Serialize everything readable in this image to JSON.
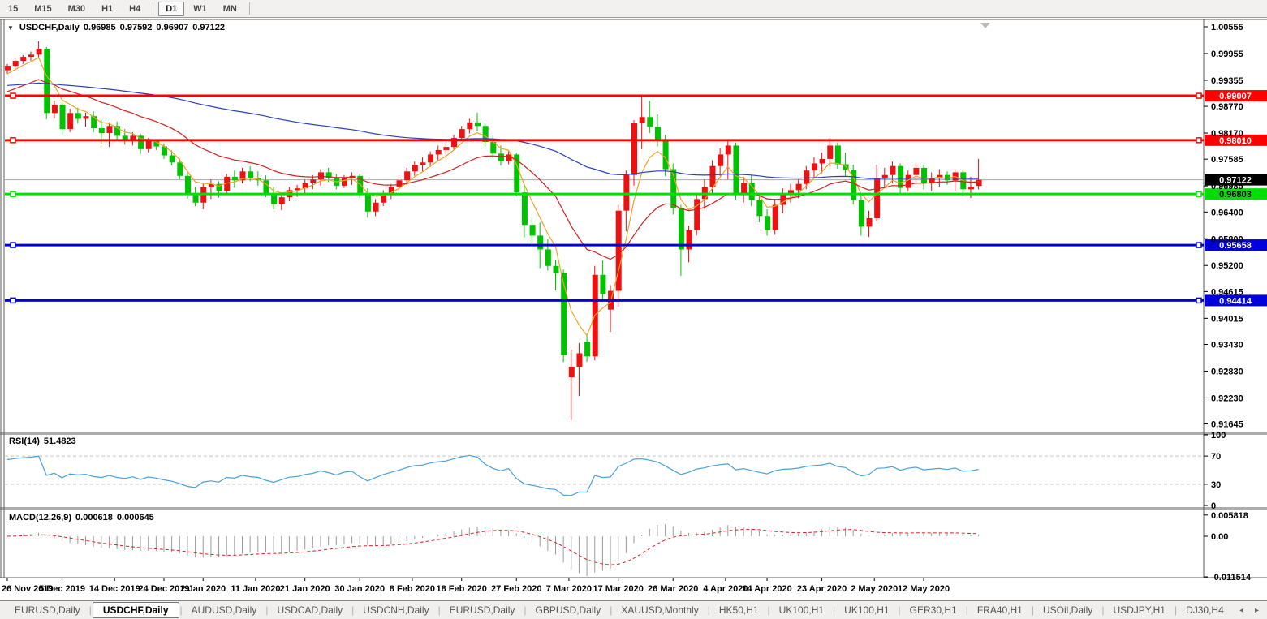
{
  "toolbar": {
    "buttons": [
      "15",
      "M15",
      "M30",
      "H1",
      "H4",
      "D1",
      "W1",
      "MN"
    ],
    "active": "D1",
    "separators_after": [
      4,
      7
    ]
  },
  "chart": {
    "title": {
      "symbol_period": "USDCHF,Daily",
      "open": "0.96985",
      "high": "0.97592",
      "low": "0.96907",
      "close": "0.97122"
    },
    "icons": {
      "symbol_dropdown": "▼",
      "shift_marker": "▾"
    },
    "colors": {
      "bull": "#ED1111",
      "bear": "#00C300",
      "ma_fast": "#EFA227",
      "ma_mid": "#D02020",
      "ma_slow": "#2A3FBF",
      "level_red": "#FF0000",
      "level_green": "#00DF00",
      "level_blue": "#0000DC",
      "current_price_line": "#A8A8A8",
      "current_price_bg": "#000000",
      "rsi_line": "#49A1DC",
      "rsi_levels": "#C4C4C4",
      "macd_hist": "#9A9A9A",
      "macd_signal": "#DD2222",
      "axis_text": "#000000",
      "frame": "#5A5A5A"
    },
    "price_axis_ticks": [
      1.00555,
      0.99955,
      0.99355,
      0.9877,
      0.9817,
      0.97585,
      0.96985,
      0.964,
      0.958,
      0.952,
      0.94615,
      0.94015,
      0.9343,
      0.9283,
      0.9223,
      0.91645
    ],
    "levels": [
      {
        "price": 0.99007,
        "label": "0.99007",
        "color": "#FF0000",
        "text_color": "#FFFFFF"
      },
      {
        "price": 0.9801,
        "label": "0.98010",
        "color": "#FF0000",
        "text_color": "#FFFFFF"
      },
      {
        "price": 0.96803,
        "label": "0.96803",
        "color": "#00DF00",
        "text_color": "#000000"
      },
      {
        "price": 0.95658,
        "label": "0.95658",
        "color": "#0000DC",
        "text_color": "#FFFFFF"
      },
      {
        "price": 0.94414,
        "label": "0.94414",
        "color": "#0000DC",
        "text_color": "#FFFFFF"
      }
    ],
    "current_price": {
      "value": 0.97122,
      "label": "0.97122"
    },
    "x_labels": [
      [
        0,
        "26 Nov 2019"
      ],
      [
        7,
        "5 Dec 2019"
      ],
      [
        13.7,
        "14 Dec 2019"
      ],
      [
        20,
        "24 Dec 2019"
      ],
      [
        25,
        "2 Jan 2020"
      ],
      [
        31.7,
        "11 Jan 2020"
      ],
      [
        38,
        "21 Jan 2020"
      ],
      [
        45,
        "30 Jan 2020"
      ],
      [
        51.7,
        "8 Feb 2020"
      ],
      [
        58,
        "18 Feb 2020"
      ],
      [
        65,
        "27 Feb 2020"
      ],
      [
        71.7,
        "7 Mar 2020"
      ],
      [
        78,
        "17 Mar 2020"
      ],
      [
        85,
        "26 Mar 2020"
      ],
      [
        91.7,
        "4 Apr 2020"
      ],
      [
        97,
        "14 Apr 2020"
      ],
      [
        104,
        "23 Apr 2020"
      ],
      [
        110.7,
        "2 May 2020"
      ],
      [
        117,
        "12 May 2020"
      ]
    ]
  },
  "rsi_panel": {
    "name": "RSI(14)",
    "value": "51.4823",
    "ticks": [
      "100",
      "70",
      "30",
      "0"
    ],
    "tick_values": [
      100,
      70,
      30,
      0
    ],
    "dashed_levels": [
      70,
      30
    ]
  },
  "macd_panel": {
    "name": "MACD(12,26,9)",
    "value1": "0.000618",
    "value2": "0.000645",
    "ticks": [
      "0.005818",
      "0.00",
      "-0.011514"
    ],
    "tick_values": [
      0.005818,
      0.0,
      -0.011514
    ]
  },
  "tabs": {
    "items": [
      "EURUSD,Daily",
      "USDCHF,Daily",
      "AUDUSD,Daily",
      "USDCAD,Daily",
      "USDCNH,Daily",
      "EURUSD,Daily",
      "GBPUSD,Daily",
      "XAUUSD,Monthly",
      "HK50,H1",
      "UK100,H1",
      "UK100,H1",
      "GER30,H1",
      "FRA40,H1",
      "USOil,Daily",
      "USDJPY,H1",
      "DJ30,H4"
    ],
    "active_index": 1,
    "scroll_left": "◂",
    "scroll_right": "▸"
  },
  "chart_data": {
    "type": "candlestick",
    "symbol": "USDCHF",
    "timeframe": "Daily",
    "price_range": [
      0.91645,
      1.00555
    ],
    "moving_averages": [
      {
        "name": "fast",
        "period": 5,
        "method": "ema",
        "color_key": "ma_fast",
        "seed": 0.995
      },
      {
        "name": "mid",
        "period": 20,
        "method": "ema",
        "color_key": "ma_mid",
        "seed": 0.991
      },
      {
        "name": "slow",
        "period": 100,
        "method": "ema",
        "color_key": "ma_slow",
        "seed": 0.9924
      }
    ],
    "rsi": {
      "period": 14,
      "seed_gain": 0.0013,
      "seed_loss": 0.0007,
      "scale": [
        0,
        100
      ]
    },
    "macd": {
      "fast": 12,
      "slow": 26,
      "signal": 9,
      "axis_max": 0.005818,
      "axis_min": -0.011514
    },
    "horizontal_lines": [
      0.99007,
      0.9801,
      0.96803,
      0.95658,
      0.94414
    ],
    "ohlc": [
      [
        "2019.11.26",
        0.9958,
        0.9972,
        0.995,
        0.9968
      ],
      [
        "2019.11.27",
        0.9968,
        0.9984,
        0.9961,
        0.9979
      ],
      [
        "2019.11.28",
        0.9979,
        0.9992,
        0.9972,
        0.9988
      ],
      [
        "2019.11.29",
        0.9988,
        1.0,
        0.9979,
        0.9993
      ],
      [
        "2019.12.02",
        0.9993,
        1.0023,
        0.9984,
        1.0006
      ],
      [
        "2019.12.03",
        1.0006,
        1.001,
        0.9848,
        0.9862
      ],
      [
        "2019.12.04",
        0.9862,
        0.989,
        0.985,
        0.9881
      ],
      [
        "2019.12.05",
        0.9881,
        0.9887,
        0.9814,
        0.9826
      ],
      [
        "2019.12.06",
        0.9826,
        0.9872,
        0.9819,
        0.9862
      ],
      [
        "2019.12.09",
        0.9862,
        0.9874,
        0.9838,
        0.9849
      ],
      [
        "2019.12.10",
        0.9849,
        0.9863,
        0.9831,
        0.9855
      ],
      [
        "2019.12.11",
        0.9855,
        0.9866,
        0.9819,
        0.9828
      ],
      [
        "2019.12.12",
        0.9828,
        0.9846,
        0.9793,
        0.9817
      ],
      [
        "2019.12.13",
        0.9817,
        0.9841,
        0.9786,
        0.9833
      ],
      [
        "2019.12.16",
        0.9833,
        0.9843,
        0.9801,
        0.9811
      ],
      [
        "2019.12.17",
        0.9811,
        0.9826,
        0.9791,
        0.9799
      ],
      [
        "2019.12.18",
        0.9799,
        0.9819,
        0.9789,
        0.9811
      ],
      [
        "2019.12.19",
        0.9811,
        0.9816,
        0.977,
        0.9781
      ],
      [
        "2019.12.20",
        0.9781,
        0.9806,
        0.9774,
        0.9799
      ],
      [
        "2019.12.23",
        0.9799,
        0.9803,
        0.9779,
        0.9787
      ],
      [
        "2019.12.24",
        0.9787,
        0.9794,
        0.9759,
        0.9767
      ],
      [
        "2019.12.26",
        0.9767,
        0.9778,
        0.9744,
        0.9751
      ],
      [
        "2019.12.27",
        0.9751,
        0.976,
        0.9713,
        0.9721
      ],
      [
        "2019.12.30",
        0.9721,
        0.9728,
        0.967,
        0.9679
      ],
      [
        "2019.12.31",
        0.9679,
        0.9696,
        0.9653,
        0.9661
      ],
      [
        "2020.01.02",
        0.9661,
        0.9703,
        0.9646,
        0.9696
      ],
      [
        "2020.01.03",
        0.9696,
        0.9713,
        0.9669,
        0.9703
      ],
      [
        "2020.01.06",
        0.9703,
        0.9709,
        0.9672,
        0.9687
      ],
      [
        "2020.01.07",
        0.9687,
        0.9726,
        0.9681,
        0.9719
      ],
      [
        "2020.01.08",
        0.9719,
        0.9733,
        0.9694,
        0.9711
      ],
      [
        "2020.01.09",
        0.9711,
        0.9739,
        0.9704,
        0.9731
      ],
      [
        "2020.01.10",
        0.9731,
        0.9743,
        0.9709,
        0.9717
      ],
      [
        "2020.01.13",
        0.9717,
        0.9731,
        0.9699,
        0.9711
      ],
      [
        "2020.01.14",
        0.9711,
        0.9722,
        0.9673,
        0.9681
      ],
      [
        "2020.01.15",
        0.9681,
        0.9696,
        0.9646,
        0.9657
      ],
      [
        "2020.01.16",
        0.9657,
        0.9681,
        0.9644,
        0.9673
      ],
      [
        "2020.01.17",
        0.9673,
        0.9696,
        0.9664,
        0.9689
      ],
      [
        "2020.01.20",
        0.9689,
        0.9701,
        0.9674,
        0.9693
      ],
      [
        "2020.01.21",
        0.9693,
        0.9713,
        0.9681,
        0.9706
      ],
      [
        "2020.01.22",
        0.9706,
        0.9723,
        0.9691,
        0.9713
      ],
      [
        "2020.01.23",
        0.9713,
        0.9736,
        0.9699,
        0.9729
      ],
      [
        "2020.01.24",
        0.9729,
        0.9739,
        0.9707,
        0.9717
      ],
      [
        "2020.01.27",
        0.9717,
        0.9726,
        0.9691,
        0.9699
      ],
      [
        "2020.01.28",
        0.9699,
        0.9723,
        0.9694,
        0.9716
      ],
      [
        "2020.01.29",
        0.9716,
        0.9729,
        0.9701,
        0.9721
      ],
      [
        "2020.01.30",
        0.9721,
        0.9726,
        0.9671,
        0.9681
      ],
      [
        "2020.01.31",
        0.9681,
        0.9693,
        0.9627,
        0.9641
      ],
      [
        "2020.02.03",
        0.9641,
        0.9669,
        0.9631,
        0.9661
      ],
      [
        "2020.02.04",
        0.9661,
        0.9689,
        0.9653,
        0.9681
      ],
      [
        "2020.02.05",
        0.9681,
        0.9703,
        0.9669,
        0.9696
      ],
      [
        "2020.02.06",
        0.9696,
        0.9719,
        0.9687,
        0.9711
      ],
      [
        "2020.02.07",
        0.9711,
        0.9739,
        0.9701,
        0.9731
      ],
      [
        "2020.02.10",
        0.9731,
        0.9753,
        0.9721,
        0.9746
      ],
      [
        "2020.02.11",
        0.9746,
        0.9763,
        0.9731,
        0.9751
      ],
      [
        "2020.02.12",
        0.9751,
        0.9776,
        0.9741,
        0.9769
      ],
      [
        "2020.02.13",
        0.9769,
        0.9789,
        0.9756,
        0.9779
      ],
      [
        "2020.02.14",
        0.9779,
        0.9796,
        0.9761,
        0.9786
      ],
      [
        "2020.02.17",
        0.9786,
        0.9813,
        0.9779,
        0.9806
      ],
      [
        "2020.02.18",
        0.9806,
        0.9833,
        0.9799,
        0.9826
      ],
      [
        "2020.02.19",
        0.9826,
        0.9849,
        0.9816,
        0.9841
      ],
      [
        "2020.02.20",
        0.9841,
        0.9863,
        0.9821,
        0.9833
      ],
      [
        "2020.02.21",
        0.9833,
        0.9841,
        0.9786,
        0.9797
      ],
      [
        "2020.02.24",
        0.9797,
        0.9811,
        0.9761,
        0.9771
      ],
      [
        "2020.02.25",
        0.9771,
        0.9789,
        0.9744,
        0.9754
      ],
      [
        "2020.02.26",
        0.9754,
        0.9776,
        0.9747,
        0.9769
      ],
      [
        "2020.02.27",
        0.9769,
        0.9773,
        0.9676,
        0.9684
      ],
      [
        "2020.02.28",
        0.9684,
        0.9699,
        0.9583,
        0.9611
      ],
      [
        "2020.03.02",
        0.9611,
        0.9626,
        0.9569,
        0.9587
      ],
      [
        "2020.03.03",
        0.9587,
        0.9616,
        0.9514,
        0.9556
      ],
      [
        "2020.03.04",
        0.9556,
        0.9579,
        0.9509,
        0.9519
      ],
      [
        "2020.03.05",
        0.9519,
        0.9533,
        0.9464,
        0.9503
      ],
      [
        "2020.03.06",
        0.9503,
        0.9511,
        0.9303,
        0.9319
      ],
      [
        "2020.03.09",
        0.9269,
        0.9331,
        0.9173,
        0.9293
      ],
      [
        "2020.03.10",
        0.9293,
        0.9346,
        0.9227,
        0.9323
      ],
      [
        "2020.03.11",
        0.9349,
        0.9366,
        0.9304,
        0.9316
      ],
      [
        "2020.03.12",
        0.9316,
        0.9519,
        0.9307,
        0.9499
      ],
      [
        "2020.03.13",
        0.9499,
        0.9531,
        0.9441,
        0.9456
      ],
      [
        "2020.03.16",
        0.9421,
        0.9476,
        0.9371,
        0.9463
      ],
      [
        "2020.03.17",
        0.9463,
        0.9656,
        0.9427,
        0.9643
      ],
      [
        "2020.03.18",
        0.9643,
        0.9733,
        0.9597,
        0.9723
      ],
      [
        "2020.03.19",
        0.9723,
        0.9846,
        0.9699,
        0.9839
      ],
      [
        "2020.03.20",
        0.9839,
        0.9901,
        0.9781,
        0.9853
      ],
      [
        "2020.03.23",
        0.9853,
        0.9889,
        0.9817,
        0.9831
      ],
      [
        "2020.03.24",
        0.9831,
        0.9859,
        0.9787,
        0.9803
      ],
      [
        "2020.03.25",
        0.9803,
        0.9813,
        0.9721,
        0.9736
      ],
      [
        "2020.03.26",
        0.9736,
        0.9749,
        0.9634,
        0.9649
      ],
      [
        "2020.03.27",
        0.9649,
        0.9656,
        0.9497,
        0.9556
      ],
      [
        "2020.03.30",
        0.9556,
        0.9609,
        0.9527,
        0.9599
      ],
      [
        "2020.03.31",
        0.9599,
        0.9683,
        0.9587,
        0.9669
      ],
      [
        "2020.04.01",
        0.9669,
        0.9713,
        0.9647,
        0.9696
      ],
      [
        "2020.04.02",
        0.9696,
        0.9756,
        0.9681,
        0.9743
      ],
      [
        "2020.04.03",
        0.9743,
        0.9783,
        0.9721,
        0.9769
      ],
      [
        "2020.04.06",
        0.9769,
        0.9801,
        0.9713,
        0.9789
      ],
      [
        "2020.04.07",
        0.9789,
        0.9796,
        0.9667,
        0.9679
      ],
      [
        "2020.04.08",
        0.9679,
        0.9719,
        0.9661,
        0.9706
      ],
      [
        "2020.04.09",
        0.9706,
        0.9723,
        0.9653,
        0.9667
      ],
      [
        "2020.04.13",
        0.9667,
        0.9683,
        0.9617,
        0.9631
      ],
      [
        "2020.04.14",
        0.9631,
        0.9646,
        0.9587,
        0.9599
      ],
      [
        "2020.04.15",
        0.9599,
        0.9669,
        0.9589,
        0.9656
      ],
      [
        "2020.04.16",
        0.9656,
        0.9693,
        0.9637,
        0.9681
      ],
      [
        "2020.04.17",
        0.9681,
        0.9703,
        0.9661,
        0.9689
      ],
      [
        "2020.04.20",
        0.9689,
        0.9713,
        0.9671,
        0.9703
      ],
      [
        "2020.04.21",
        0.9703,
        0.9743,
        0.9691,
        0.9733
      ],
      [
        "2020.04.22",
        0.9733,
        0.9763,
        0.9717,
        0.9749
      ],
      [
        "2020.04.23",
        0.9749,
        0.9773,
        0.9727,
        0.9759
      ],
      [
        "2020.04.24",
        0.9759,
        0.9806,
        0.9741,
        0.9789
      ],
      [
        "2020.04.27",
        0.9789,
        0.9796,
        0.9737,
        0.9747
      ],
      [
        "2020.04.28",
        0.9747,
        0.9773,
        0.9721,
        0.9734
      ],
      [
        "2020.04.29",
        0.9734,
        0.9746,
        0.9657,
        0.9667
      ],
      [
        "2020.04.30",
        0.9667,
        0.9679,
        0.9587,
        0.9607
      ],
      [
        "2020.05.01",
        0.9607,
        0.9643,
        0.9584,
        0.9626
      ],
      [
        "2020.05.04",
        0.9626,
        0.9746,
        0.9619,
        0.9716
      ],
      [
        "2020.05.05",
        0.9716,
        0.9739,
        0.9697,
        0.9723
      ],
      [
        "2020.05.06",
        0.9723,
        0.9753,
        0.9704,
        0.9743
      ],
      [
        "2020.05.07",
        0.9743,
        0.9749,
        0.9681,
        0.9694
      ],
      [
        "2020.05.08",
        0.9694,
        0.9733,
        0.9687,
        0.9723
      ],
      [
        "2020.05.11",
        0.9723,
        0.9749,
        0.9704,
        0.9739
      ],
      [
        "2020.05.12",
        0.9739,
        0.9746,
        0.9691,
        0.9704
      ],
      [
        "2020.05.13",
        0.9704,
        0.9729,
        0.9687,
        0.9716
      ],
      [
        "2020.05.14",
        0.9716,
        0.9736,
        0.9697,
        0.9723
      ],
      [
        "2020.05.15",
        0.9723,
        0.9731,
        0.9701,
        0.9711
      ],
      [
        "2020.05.18",
        0.9711,
        0.9736,
        0.9687,
        0.9729
      ],
      [
        "2020.05.19",
        0.9729,
        0.9733,
        0.9677,
        0.9691
      ],
      [
        "2020.05.20",
        0.9691,
        0.9719,
        0.9671,
        0.9697
      ],
      [
        "2020.05.21",
        0.96985,
        0.97592,
        0.96907,
        0.97122
      ]
    ]
  }
}
